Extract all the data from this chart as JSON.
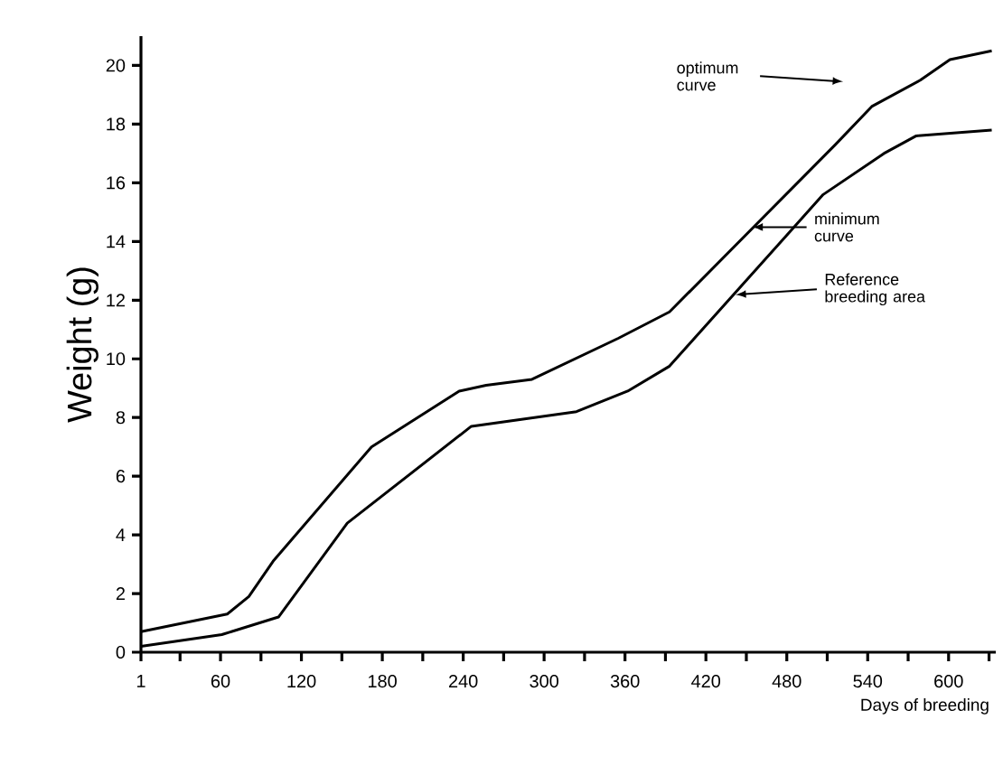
{
  "chart_data": {
    "type": "line",
    "xlabel": "Days of breeding",
    "ylabel": "Weight (g)",
    "xlim": [
      1,
      635
    ],
    "ylim": [
      0,
      21
    ],
    "xticks": [
      1,
      {
        "value": 30,
        "label": null
      },
      60,
      {
        "value": 90,
        "label": null
      },
      120,
      {
        "value": 150,
        "label": null
      },
      180,
      {
        "value": 210,
        "label": null
      },
      240,
      {
        "value": 270,
        "label": null
      },
      300,
      {
        "value": 330,
        "label": null
      },
      360,
      {
        "value": 390,
        "label": null
      },
      420,
      {
        "value": 450,
        "label": null
      },
      480,
      {
        "value": 510,
        "label": null
      },
      540,
      {
        "value": 570,
        "label": null
      },
      600,
      {
        "value": 630,
        "label": null
      }
    ],
    "yticks": [
      0,
      2,
      4,
      6,
      8,
      10,
      12,
      14,
      16,
      18,
      20
    ],
    "grid": false,
    "legend": false,
    "marker": "none",
    "line_style": "solid",
    "series": [
      {
        "color": "#000000",
        "x": [
          1,
          65,
          81,
          99,
          172,
          237,
          257,
          291,
          355,
          393,
          516,
          543,
          579,
          601,
          632
        ],
        "values": [
          0.7,
          1.3,
          1.9,
          3.1,
          7.0,
          8.9,
          9.1,
          9.3,
          10.7,
          11.6,
          17.3,
          18.6,
          19.5,
          20.2,
          20.5
        ]
      },
      {
        "color": "#000000",
        "x": [
          1,
          61,
          103,
          154,
          246,
          270,
          324,
          362,
          393,
          507,
          552,
          576,
          632
        ],
        "values": [
          0.2,
          0.6,
          1.2,
          4.4,
          7.7,
          7.85,
          8.2,
          8.9,
          9.75,
          15.6,
          17.0,
          17.6,
          17.8
        ]
      }
    ],
    "annotations": [
      "optimum curve",
      "minimum curve",
      "Reference breeding area"
    ]
  }
}
